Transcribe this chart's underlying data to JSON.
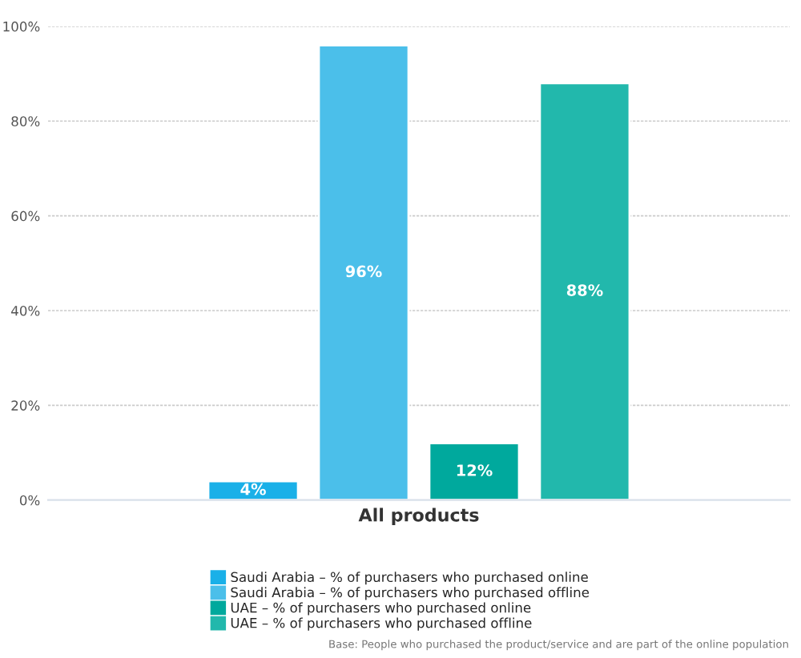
{
  "chart_data": {
    "type": "bar",
    "categories": [
      "All products"
    ],
    "series": [
      {
        "name": "Saudi Arabia – % of purchasers who purchased online",
        "color": "#1ab0e8",
        "values": [
          4
        ],
        "value_labels": [
          "4%"
        ]
      },
      {
        "name": "Saudi Arabia – % of purchasers who purchased offline",
        "color": "#4bbfea",
        "values": [
          96
        ],
        "value_labels": [
          "96%"
        ]
      },
      {
        "name": "UAE – % of purchasers who purchased online",
        "color": "#00a99d",
        "values": [
          12
        ],
        "value_labels": [
          "12%"
        ]
      },
      {
        "name": "UAE – % of purchasers who purchased offline",
        "color": "#22b8ac",
        "values": [
          88
        ],
        "value_labels": [
          "88%"
        ]
      }
    ],
    "ylim": [
      0,
      100
    ],
    "yticks": [
      {
        "value": 0,
        "label": "0%"
      },
      {
        "value": 20,
        "label": "20%"
      },
      {
        "value": 40,
        "label": "40%"
      },
      {
        "value": 60,
        "label": "60%"
      },
      {
        "value": 80,
        "label": "80%"
      },
      {
        "value": 100,
        "label": "100%"
      }
    ],
    "grid": "y",
    "legend": "bottom",
    "annotations": [
      "Base: People who purchased the product/service and are part of the online population"
    ]
  }
}
